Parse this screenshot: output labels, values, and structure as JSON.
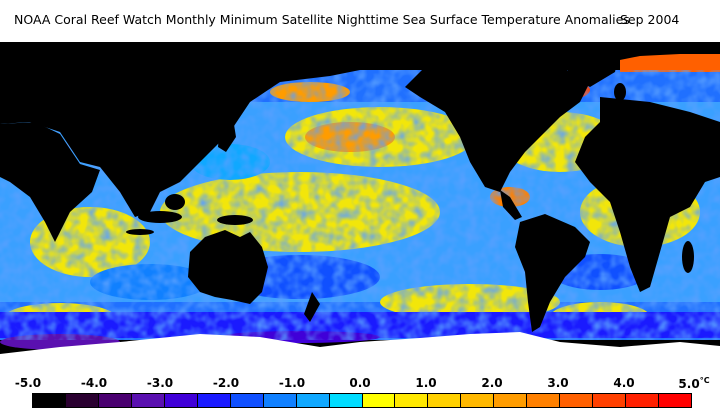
{
  "header": {
    "title": "NOAA Coral Reef Watch Monthly Minimum Satellite Nighttime Sea Surface Temperature Anomalies",
    "date": "Sep 2004"
  },
  "colors": {
    "land": "#000000",
    "ice": "#ffffff",
    "ocean_neutral": "#f2e60a"
  },
  "legend": {
    "unit": "°C",
    "labels": [
      "-5.0",
      "-4.0",
      "-3.0",
      "-2.0",
      "-1.0",
      "0.0",
      "1.0",
      "2.0",
      "3.0",
      "4.0",
      "5.0"
    ],
    "swatches": [
      "#000000",
      "#2a0030",
      "#4a0070",
      "#5a10b0",
      "#4000d8",
      "#1a1aff",
      "#1050ff",
      "#1080ff",
      "#10a8ff",
      "#00dcff",
      "#ffff00",
      "#ffe800",
      "#ffd000",
      "#ffb800",
      "#ff9c00",
      "#ff8000",
      "#ff6000",
      "#ff4000",
      "#ff2000",
      "#ff0000"
    ]
  }
}
